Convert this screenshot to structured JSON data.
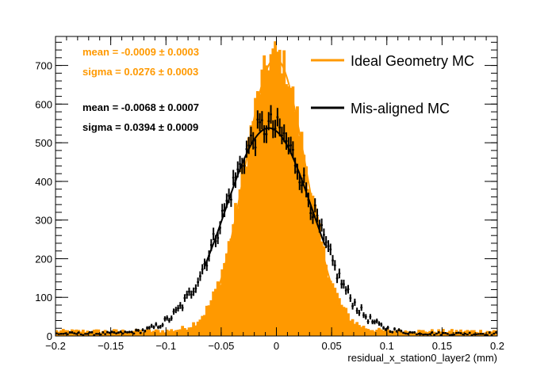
{
  "chart_data": {
    "type": "histogram",
    "xlabel": "residual_x_station0_layer2 (mm)",
    "ylabel": "",
    "xlim": [
      -0.2,
      0.2
    ],
    "ylim": [
      0,
      775
    ],
    "grid": false,
    "legend_placement": "top-right",
    "x_ticks": [
      "−0.2",
      "−0.15",
      "−0.1",
      "−0.05",
      "0",
      "0.05",
      "0.1",
      "0.15",
      "0.2"
    ],
    "x_tick_values": [
      -0.2,
      -0.15,
      -0.1,
      -0.05,
      0,
      0.05,
      0.1,
      0.15,
      0.2
    ],
    "y_ticks": [
      "0",
      "100",
      "200",
      "300",
      "400",
      "500",
      "600",
      "700"
    ],
    "y_tick_values": [
      0,
      100,
      200,
      300,
      400,
      500,
      600,
      700
    ],
    "bin_width": 0.002,
    "series": [
      {
        "name": "Ideal Geometry MC",
        "color": "#ff9900",
        "style": "filled-histogram",
        "fit": {
          "mean": -0.0009,
          "sigma": 0.0276,
          "peak": 718
        },
        "stats_lines": [
          "mean = -0.0009 ± 0.0003",
          "sigma = 0.0276 ± 0.0003"
        ]
      },
      {
        "name": "Mis-aligned MC",
        "color": "#000000",
        "style": "points-with-errorbars",
        "fit": {
          "mean": -0.0068,
          "sigma": 0.0394,
          "peak": 538
        },
        "stats_lines": [
          "mean = -0.0068 ± 0.0007",
          "sigma = 0.0394 ± 0.0009"
        ]
      }
    ]
  }
}
